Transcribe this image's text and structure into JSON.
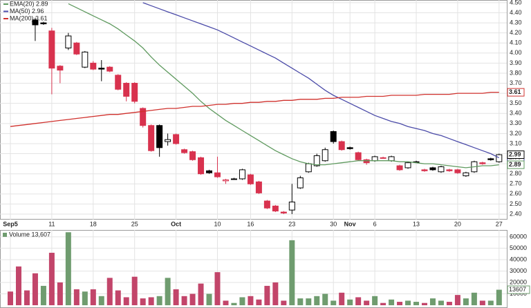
{
  "chart_data": {
    "type": "candlestick",
    "categories": [
      "Sep5",
      null,
      null,
      null,
      null,
      "11",
      null,
      null,
      null,
      null,
      "18",
      null,
      null,
      null,
      null,
      "25",
      null,
      null,
      null,
      null,
      "Oct",
      null,
      null,
      null,
      null,
      "10",
      null,
      null,
      null,
      "16",
      null,
      null,
      null,
      null,
      "23",
      null,
      null,
      null,
      null,
      "30",
      null,
      "Nov",
      null,
      null,
      "6",
      null,
      null,
      null,
      null,
      "13",
      null,
      null,
      null,
      null,
      "20",
      null,
      null,
      null,
      null,
      "27"
    ],
    "open": [
      null,
      null,
      null,
      4.33,
      4.3,
      4.22,
      3.87,
      4.05,
      4.1,
      3.86,
      3.9,
      3.85,
      3.86,
      3.78,
      3.7,
      3.7,
      3.45,
      3.28,
      3.28,
      3.12,
      3.19,
      3.04,
      3.02,
      2.96,
      2.83,
      2.81,
      2.73,
      2.75,
      2.75,
      2.79,
      2.72,
      2.53,
      2.48,
      2.42,
      2.44,
      2.66,
      2.82,
      2.88,
      2.93,
      3.22,
      3.12,
      3.06,
      3.01,
      2.94,
      2.93,
      2.96,
      2.93,
      2.88,
      2.86,
      2.92,
      2.84,
      2.86,
      2.82,
      2.84,
      2.84,
      2.78,
      2.82,
      2.91,
      2.95,
      2.92
    ],
    "high": [
      null,
      null,
      null,
      4.35,
      4.31,
      4.25,
      3.88,
      4.2,
      4.11,
      4.02,
      3.92,
      3.93,
      3.87,
      3.79,
      3.71,
      3.71,
      3.46,
      3.29,
      3.29,
      3.2,
      3.2,
      3.05,
      3.03,
      2.97,
      2.84,
      2.97,
      2.75,
      2.76,
      2.85,
      2.8,
      2.73,
      2.54,
      2.49,
      2.43,
      2.7,
      2.78,
      2.91,
      3.0,
      3.06,
      3.23,
      3.13,
      3.07,
      3.02,
      2.95,
      2.98,
      2.97,
      2.98,
      2.89,
      2.92,
      2.93,
      2.85,
      2.87,
      2.88,
      2.85,
      2.85,
      2.82,
      2.93,
      2.92,
      2.96,
      3.0
    ],
    "low": [
      null,
      null,
      null,
      4.12,
      4.28,
      3.59,
      3.7,
      4.03,
      3.98,
      3.85,
      3.83,
      3.72,
      3.81,
      3.63,
      3.52,
      3.5,
      3.26,
      3.02,
      2.97,
      3.08,
      3.09,
      3.0,
      2.93,
      2.79,
      2.8,
      2.76,
      2.7,
      2.74,
      2.74,
      2.69,
      2.6,
      2.45,
      2.42,
      2.4,
      2.4,
      2.65,
      2.81,
      2.87,
      2.92,
      3.1,
      3.03,
      3.04,
      2.93,
      2.89,
      2.92,
      2.95,
      2.92,
      2.83,
      2.85,
      2.91,
      2.82,
      2.83,
      2.81,
      2.82,
      2.8,
      2.77,
      2.81,
      2.89,
      2.93,
      2.91
    ],
    "close": [
      null,
      null,
      null,
      4.28,
      4.29,
      3.85,
      3.83,
      4.17,
      3.99,
      4.01,
      3.84,
      3.84,
      3.82,
      3.64,
      3.57,
      3.52,
      3.28,
      3.03,
      3.06,
      3.14,
      3.1,
      3.01,
      2.94,
      2.8,
      2.81,
      2.77,
      2.74,
      2.75,
      2.84,
      2.7,
      2.61,
      2.46,
      2.43,
      2.41,
      2.52,
      2.76,
      2.9,
      2.98,
      3.04,
      3.12,
      3.04,
      3.05,
      2.94,
      2.91,
      2.97,
      2.96,
      2.97,
      2.84,
      2.91,
      2.92,
      2.83,
      2.84,
      2.87,
      2.83,
      2.81,
      2.81,
      2.92,
      2.9,
      2.94,
      2.99
    ],
    "up_color": "#000000",
    "down_color": "#d8324e",
    "ylim": [
      2.345,
      4.527
    ],
    "yticks": [
      {
        "value": 2.4,
        "label": "2.40"
      },
      {
        "value": 2.5,
        "label": "2.50"
      },
      {
        "value": 2.6,
        "label": "2.60"
      },
      {
        "value": 2.7,
        "label": "2.70"
      },
      {
        "value": 2.8,
        "label": "2.80"
      },
      {
        "value": 2.9,
        "label": "2.90"
      },
      {
        "value": 3.0,
        "label": "3.00"
      },
      {
        "value": 3.1,
        "label": "3.10"
      },
      {
        "value": 3.2,
        "label": "3.20"
      },
      {
        "value": 3.3,
        "label": "3.30"
      },
      {
        "value": 3.4,
        "label": "3.40"
      },
      {
        "value": 3.5,
        "label": "3.50"
      },
      {
        "value": 3.6,
        "label": "3.60"
      },
      {
        "value": 3.7,
        "label": "3.70"
      },
      {
        "value": 3.8,
        "label": "3.80"
      },
      {
        "value": 3.9,
        "label": "3.90"
      },
      {
        "value": 4.0,
        "label": "4.00"
      },
      {
        "value": 4.1,
        "label": "4.10"
      },
      {
        "value": 4.2,
        "label": "4.20"
      },
      {
        "value": 4.3,
        "label": "4.30"
      },
      {
        "value": 4.4,
        "label": "4.40"
      },
      {
        "value": 4.5,
        "label": "4.50"
      }
    ],
    "grid": true,
    "series": [
      {
        "name": "EMA(20) 2.89",
        "color": "#5f9a5f",
        "values": [
          null,
          null,
          null,
          null,
          null,
          null,
          null,
          4.49,
          4.45,
          4.41,
          4.37,
          4.33,
          4.29,
          4.24,
          4.18,
          4.12,
          4.05,
          3.96,
          3.88,
          3.81,
          3.74,
          3.67,
          3.6,
          3.52,
          3.45,
          3.39,
          3.33,
          3.28,
          3.23,
          3.18,
          3.13,
          3.08,
          3.03,
          2.99,
          2.95,
          2.92,
          2.9,
          2.89,
          2.89,
          2.9,
          2.91,
          2.92,
          2.93,
          2.93,
          2.93,
          2.93,
          2.93,
          2.92,
          2.92,
          2.91,
          2.9,
          2.9,
          2.89,
          2.88,
          2.87,
          2.86,
          2.87,
          2.88,
          2.88,
          2.89
        ]
      },
      {
        "name": "MA(50) 2.96",
        "color": "#4a4aa8",
        "values": [
          null,
          null,
          null,
          null,
          null,
          null,
          null,
          null,
          null,
          null,
          null,
          null,
          null,
          null,
          null,
          null,
          4.5,
          4.47,
          4.44,
          4.41,
          4.38,
          4.35,
          4.32,
          4.29,
          4.26,
          4.23,
          4.19,
          4.15,
          4.11,
          4.07,
          4.03,
          3.99,
          3.95,
          3.9,
          3.85,
          3.8,
          3.75,
          3.69,
          3.63,
          3.58,
          3.54,
          3.5,
          3.46,
          3.42,
          3.38,
          3.35,
          3.32,
          3.3,
          3.27,
          3.25,
          3.23,
          3.2,
          3.18,
          3.15,
          3.12,
          3.09,
          3.06,
          3.03,
          3.0,
          2.96
        ]
      },
      {
        "name": "MA(200) 3.61",
        "color": "#d0302c",
        "values": [
          3.27,
          3.28,
          3.29,
          3.3,
          3.31,
          3.32,
          3.33,
          3.34,
          3.35,
          3.36,
          3.37,
          3.38,
          3.39,
          3.39,
          3.4,
          3.41,
          3.42,
          3.43,
          3.44,
          3.45,
          3.45,
          3.46,
          3.47,
          3.47,
          3.48,
          3.49,
          3.49,
          3.5,
          3.5,
          3.51,
          3.51,
          3.52,
          3.52,
          3.53,
          3.53,
          3.54,
          3.54,
          3.54,
          3.55,
          3.55,
          3.56,
          3.56,
          3.56,
          3.57,
          3.57,
          3.57,
          3.58,
          3.58,
          3.58,
          3.58,
          3.59,
          3.59,
          3.59,
          3.59,
          3.6,
          3.6,
          3.6,
          3.6,
          3.61,
          3.61
        ]
      }
    ],
    "volume": {
      "name": "Volume 13,607",
      "up_color": "#6f9c6f",
      "down_color": "#c2456a",
      "values": [
        12000,
        34000,
        13000,
        28000,
        17000,
        46000,
        20000,
        64000,
        14000,
        12000,
        14000,
        8000,
        24000,
        13000,
        7000,
        25000,
        6000,
        7000,
        8000,
        24000,
        14000,
        8000,
        10000,
        19000,
        10000,
        29000,
        4000,
        2000,
        7000,
        8000,
        5000,
        17000,
        20000,
        4000,
        57000,
        6000,
        6000,
        8000,
        10000,
        4000,
        11000,
        5000,
        7000,
        4000,
        8000,
        2000,
        5000,
        3000,
        4000,
        3000,
        2000,
        6000,
        4000,
        3000,
        9000,
        6000,
        11000,
        4000,
        4000,
        13607
      ],
      "ylim": [
        0,
        66000
      ],
      "yticks": [
        10000,
        20000,
        30000,
        40000,
        50000,
        60000
      ]
    }
  }
}
